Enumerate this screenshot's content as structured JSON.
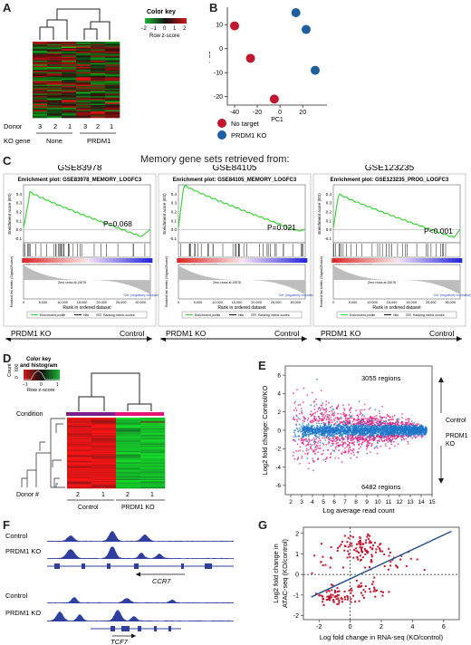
{
  "panels": [
    "A",
    "B",
    "C",
    "D",
    "E",
    "F",
    "G"
  ],
  "panelA": {
    "color_key_title": "Color key",
    "scale_label": "Row z-score",
    "scale_ticks": [
      "−2",
      "−1",
      "0",
      "1",
      "2"
    ],
    "donor_label": "Donor",
    "donors": [
      "3",
      "2",
      "1",
      "3",
      "2",
      "1"
    ],
    "ko_gene_label": "KO gene",
    "groups": [
      "None",
      "PRDM1"
    ]
  },
  "panelB": {
    "legend": [
      {
        "label": "No target",
        "color": "#c0182f"
      },
      {
        "label": "PRDM1 KO",
        "color": "#1f5fa0"
      }
    ]
  },
  "panelC": {
    "header": "Memory gene sets retrieved from:",
    "sets": [
      {
        "name": "GSE83978",
        "plot_title": "Enrichment plot: GSE83978_MEMORY_LOGFC3",
        "p": "P=0.068",
        "left": "PRDM1 KO",
        "right": "Control"
      },
      {
        "name": "GSE84105",
        "plot_title": "Enrichment plot: GSE84105_MEMORY_LOGFC3",
        "p": "P=0.021",
        "left": "PRDM1 KO",
        "right": "Control"
      },
      {
        "name": "GSE123235",
        "plot_title": "Enrichment plot: GSE123235_PROG_LOGFC3",
        "p": "P<0.001",
        "left": "PRDM1 KO",
        "right": "Control"
      }
    ],
    "es_label": "Enrichment score (ES)",
    "metric_label": "Ranked list metric (Signal2Noise)",
    "x_label": "Rank in ordered dataset",
    "pos_label": "'KO' (positively correlated)",
    "neg_label": "'Ctrl' (negatively correlated)",
    "zero_label": "Zero cross at 19076",
    "legend_items": [
      "Enrichment profile",
      "Hits",
      "Ranking metric scores"
    ],
    "es_ticks": [
      "0.4",
      "0.3",
      "0.2",
      "0.1",
      "0.0",
      "-0.1"
    ],
    "x_ticks": [
      "0",
      "5,000",
      "10,000",
      "15,000",
      "20,000",
      "25,000",
      "30,000"
    ]
  },
  "panelD": {
    "key_title": "Color key\nand histogram",
    "count_label": "Count",
    "count_ticks": [
      "0",
      "600"
    ],
    "scale_label": "Row z-score",
    "scale_ticks": [
      "−1",
      "0",
      "1"
    ],
    "condition_label": "Condition",
    "donor_label": "Donor #",
    "donors": [
      "2",
      "1",
      "2",
      "1"
    ],
    "groups": [
      "Control",
      "PRDM1 KO"
    ]
  },
  "panelE": {
    "ylabel": "Log2 fold change: Control/KO",
    "xlabel": "Log average read count",
    "top_regions": "3055 regions",
    "bottom_regions": "6482 regions",
    "up_label": "Control",
    "down_label": "PRDM1\nKO"
  },
  "panelF": {
    "track_labels": [
      "Control",
      "PRDM1 KO",
      "Control",
      "PRDM1 KO"
    ],
    "genes": [
      "CCR7",
      "TCF7"
    ]
  },
  "panelG": {
    "ylabel": "Log2 fold change in\nATAC-seq (KO/control)",
    "xlabel": "Log fold change in RNA-seq (KO/control)"
  },
  "chart_data": [
    {
      "panel": "B",
      "type": "scatter",
      "xlabel": "PC1",
      "ylabel": "PC2",
      "xlim": [
        -40,
        35
      ],
      "ylim": [
        -22,
        15
      ],
      "x_ticks": [
        -40,
        -20,
        0,
        20
      ],
      "y_ticks": [
        10,
        0,
        -10,
        -20
      ],
      "series": [
        {
          "name": "No target",
          "color": "#c0182f",
          "points": [
            [
              -40,
              9.5
            ],
            [
              -26,
              -4
            ],
            [
              -5,
              -21
            ]
          ]
        },
        {
          "name": "PRDM1 KO",
          "color": "#1f5fa0",
          "points": [
            [
              14,
              15
            ],
            [
              23,
              8
            ],
            [
              31,
              -9
            ]
          ]
        }
      ]
    },
    {
      "panel": "E",
      "type": "scatter",
      "xlabel": "Log average read count",
      "ylabel": "Log2 fold change: Control/KO",
      "xlim": [
        1.5,
        15
      ],
      "ylim": [
        -7,
        7
      ],
      "x_ticks": [
        2,
        3,
        4,
        5,
        6,
        7,
        8,
        9,
        10,
        11,
        12,
        13,
        14,
        15
      ],
      "y_ticks": [
        -6,
        -4,
        -2,
        0,
        2,
        4,
        6
      ],
      "series": [
        {
          "name": "significant",
          "color": "#e61b7c"
        },
        {
          "name": "not significant",
          "color": "#1f77c9"
        }
      ]
    },
    {
      "panel": "G",
      "type": "scatter",
      "xlabel": "Log fold change in RNA-seq (KO/control)",
      "ylabel": "Log2 fold change in ATAC-seq (KO/control)",
      "xlim": [
        -3,
        7
      ],
      "ylim": [
        -2.2,
        2.3
      ],
      "x_ticks": [
        -2,
        0,
        2,
        4,
        6
      ],
      "y_ticks": [
        -2,
        -1,
        0,
        1,
        2
      ],
      "trendline": [
        [
          -2.5,
          -1.1
        ],
        [
          6.5,
          2.1
        ]
      ],
      "series": [
        {
          "name": "regions",
          "color": "#c0182f"
        }
      ]
    }
  ]
}
